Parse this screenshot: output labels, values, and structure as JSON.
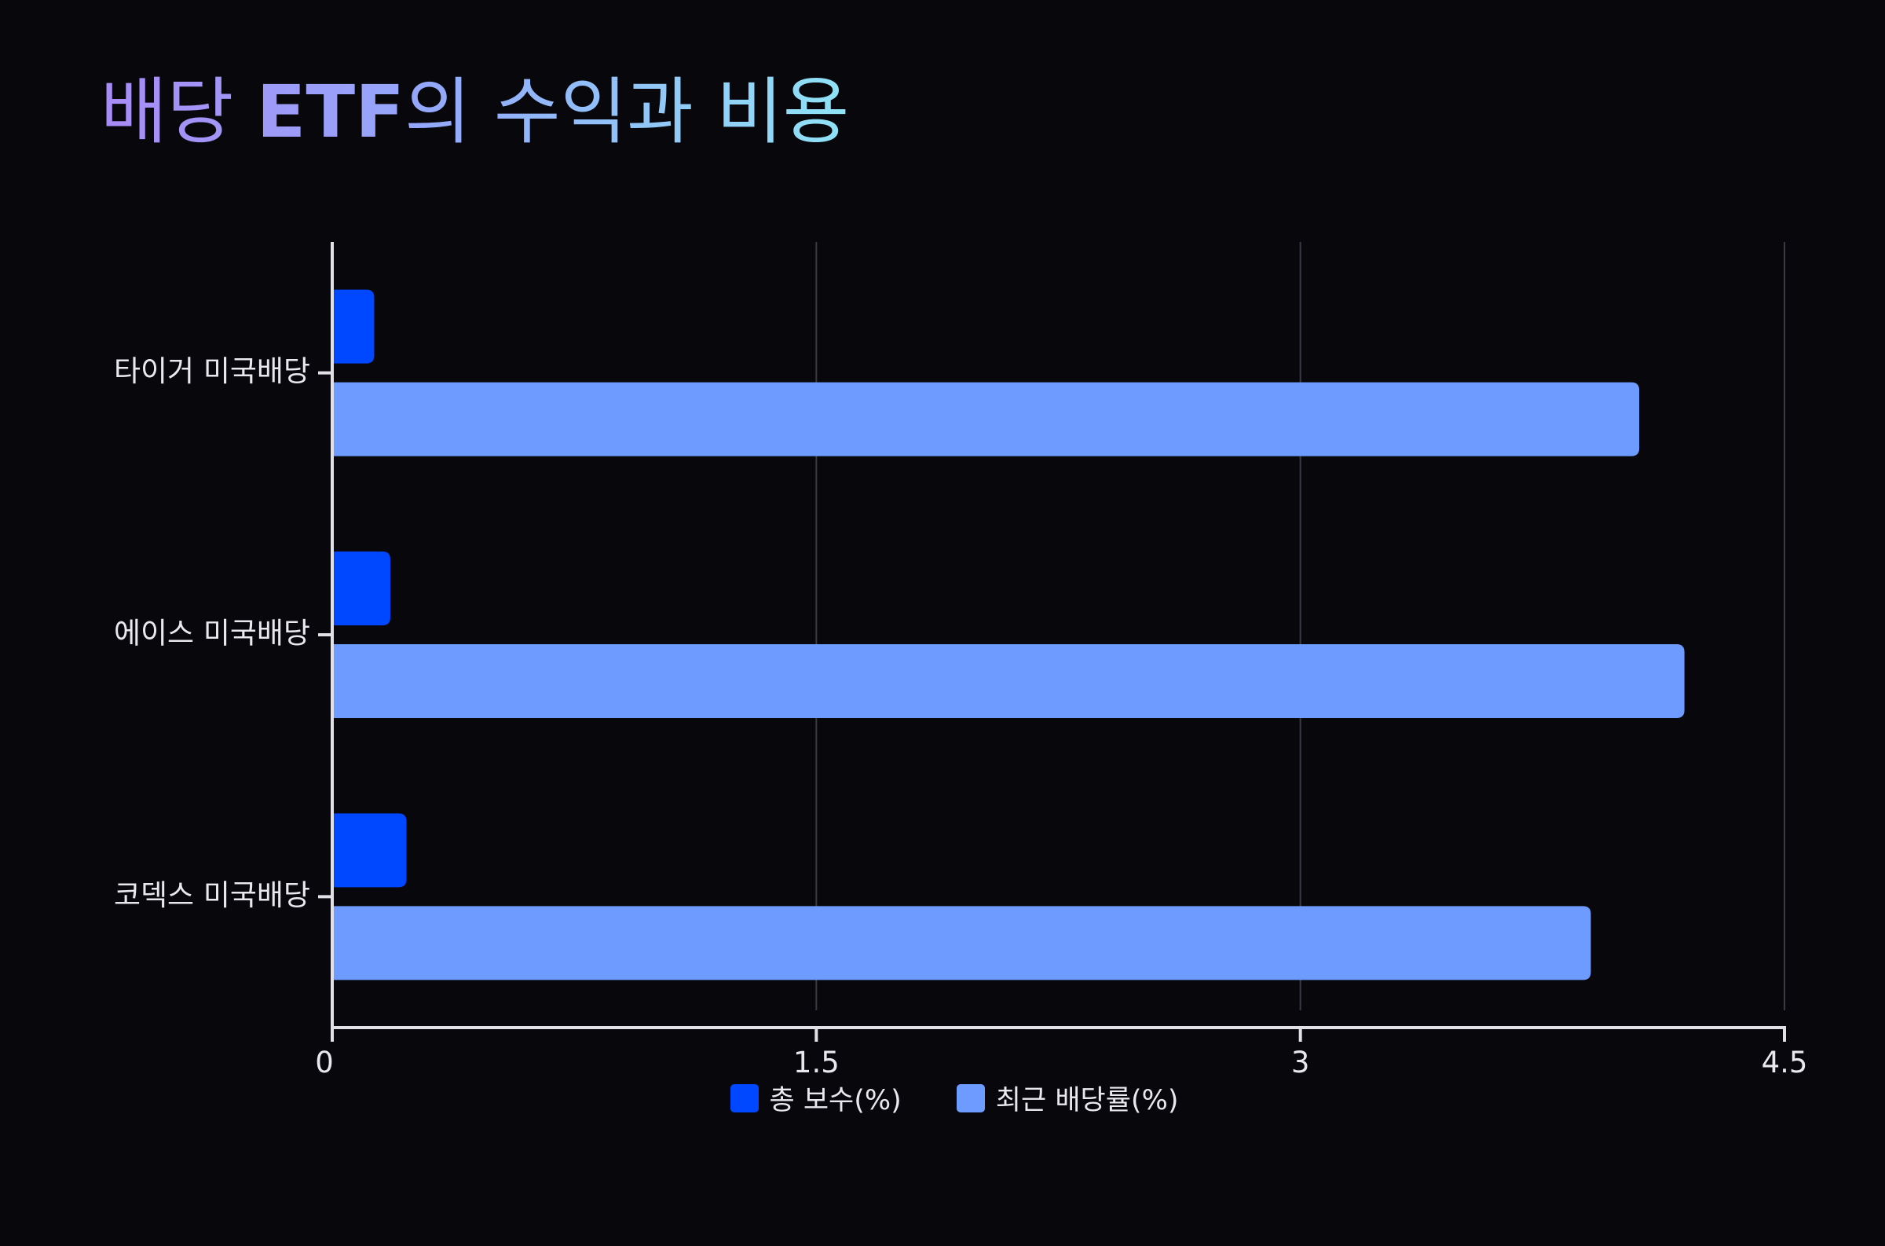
{
  "title_parts": [
    "배당 ",
    "ETF",
    "의 수익과 비용"
  ],
  "chart_data": {
    "type": "bar",
    "orientation": "horizontal",
    "title": "배당 ETF의 수익과 비용",
    "categories": [
      "타이거 미국배당",
      "에이스 미국배당",
      "코덱스 미국배당"
    ],
    "series": [
      {
        "name": "총 보수(%)",
        "color": "#0048ff",
        "values": [
          0.13,
          0.18,
          0.23
        ]
      },
      {
        "name": "최근 배당률(%)",
        "color": "#6e9bff",
        "values": [
          4.05,
          4.19,
          3.9
        ]
      }
    ],
    "xlim": [
      0,
      4.5
    ],
    "xticks": [
      "0",
      "1.5",
      "3",
      "4.5"
    ],
    "xtick_values": [
      0,
      1.5,
      3,
      4.5
    ],
    "grid": true,
    "legend_position": "bottom"
  },
  "colors": {
    "background": "#07070c",
    "axis": "#e0e0e6",
    "grid": "#3a3a44"
  }
}
